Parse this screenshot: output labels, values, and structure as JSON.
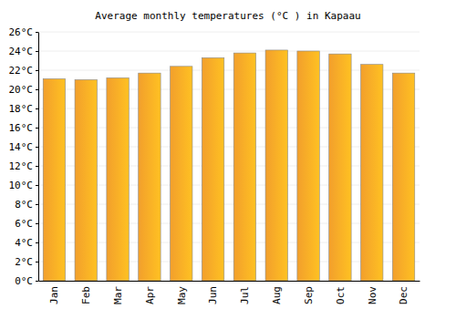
{
  "chart_data": {
    "type": "bar",
    "title": "Average monthly temperatures (°C ) in Kapaau",
    "categories": [
      "Jan",
      "Feb",
      "Mar",
      "Apr",
      "May",
      "Jun",
      "Jul",
      "Aug",
      "Sep",
      "Oct",
      "Nov",
      "Dec"
    ],
    "values": [
      21.1,
      21.0,
      21.2,
      21.7,
      22.4,
      23.3,
      23.8,
      24.1,
      24.0,
      23.7,
      22.6,
      21.7
    ],
    "color": "#ffa82e",
    "ylim": [
      0,
      26
    ],
    "yticks": [
      {
        "value": 0,
        "label": "0°C"
      },
      {
        "value": 2,
        "label": "2°C"
      },
      {
        "value": 4,
        "label": "4°C"
      },
      {
        "value": 6,
        "label": "6°C"
      },
      {
        "value": 8,
        "label": "8°C"
      },
      {
        "value": 10,
        "label": "10°C"
      },
      {
        "value": 12,
        "label": "12°C"
      },
      {
        "value": 14,
        "label": "14°C"
      },
      {
        "value": 16,
        "label": "16°C"
      },
      {
        "value": 18,
        "label": "18°C"
      },
      {
        "value": 20,
        "label": "20°C"
      },
      {
        "value": 22,
        "label": "22°C"
      },
      {
        "value": 24,
        "label": "24°C"
      },
      {
        "value": 26,
        "label": "26°C"
      }
    ],
    "grid": true
  }
}
